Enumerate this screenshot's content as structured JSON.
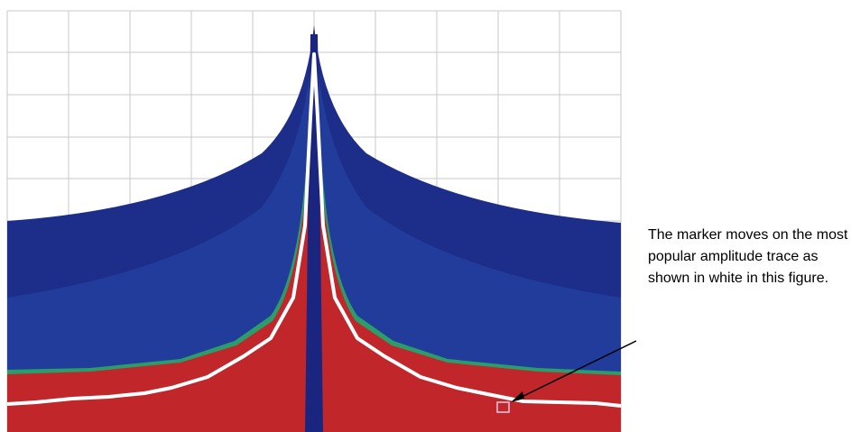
{
  "annotation": {
    "text": "The marker moves on the most popular amplitude trace as shown in white in this figure."
  }
}
